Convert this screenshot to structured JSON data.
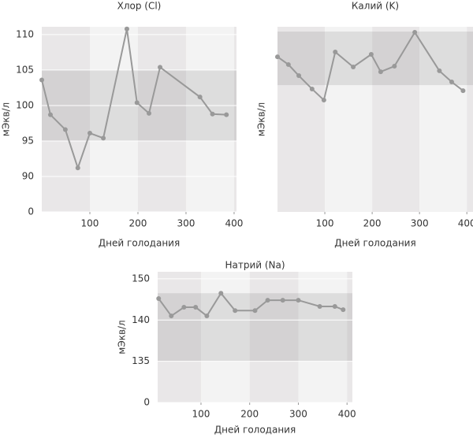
{
  "chart_data": [
    {
      "type": "line",
      "title": "Хлор (Cl)",
      "x_label": "Дней голодания",
      "y_label": "мЭкв/л",
      "x": [
        0,
        18,
        49,
        75,
        100,
        128,
        177,
        198,
        223,
        246,
        329,
        355,
        384
      ],
      "series": [
        {
          "color": "#999999",
          "values": [
            103.6,
            98.7,
            96.6,
            91.2,
            96.1,
            95.4,
            110.8,
            100.4,
            98.9,
            105.4,
            101.2,
            98.8,
            98.7
          ]
        }
      ],
      "xlim": [
        0,
        405
      ],
      "xticks": [
        100,
        200,
        300,
        400
      ],
      "ylim": [
        0,
        111.1
      ],
      "yticks": [
        0,
        90,
        95,
        100,
        105,
        110
      ],
      "axis_break": true,
      "band": [
        95,
        105
      ],
      "grid": true
    },
    {
      "type": "line",
      "title": "Калий (K)",
      "x_label": "Дней голодания",
      "y_label": "мЭкв/л",
      "x": [
        0,
        23,
        45,
        73,
        98,
        122,
        160,
        198,
        218,
        247,
        290,
        342,
        368,
        392
      ],
      "series": [
        {
          "color": "#999999",
          "values": [
            83.8,
            79.6,
            73.6,
            66.4,
            60.4,
            86.4,
            78.3,
            85.1,
            75.7,
            78.7,
            97.0,
            76.2,
            70.2,
            65.5
          ]
        }
      ],
      "xlim": [
        0,
        413
      ],
      "xticks": [
        100,
        200,
        300,
        400
      ],
      "ylim": [
        0,
        100
      ],
      "band": [
        68.5,
        97.4
      ],
      "grid": true
    },
    {
      "type": "line",
      "title": "Натрий (Na)",
      "x_label": "Дней голодания",
      "y_label": "мЭкв/л",
      "x": [
        13,
        39,
        65,
        89,
        112,
        141,
        170,
        211,
        237,
        268,
        300,
        344,
        375,
        392
      ],
      "series": [
        {
          "color": "#999999",
          "values": [
            145.2,
            141.0,
            143.1,
            143.1,
            141.0,
            146.5,
            142.3,
            142.3,
            144.8,
            144.8,
            144.8,
            143.3,
            143.3,
            142.5
          ]
        }
      ],
      "xlim": [
        11,
        411
      ],
      "xticks": [
        100,
        200,
        300,
        400
      ],
      "ylim": [
        0,
        151.7
      ],
      "yticks": [
        0,
        135,
        140,
        150
      ],
      "axis_break": true,
      "band": [
        135,
        146.5
      ],
      "grid": true
    }
  ]
}
